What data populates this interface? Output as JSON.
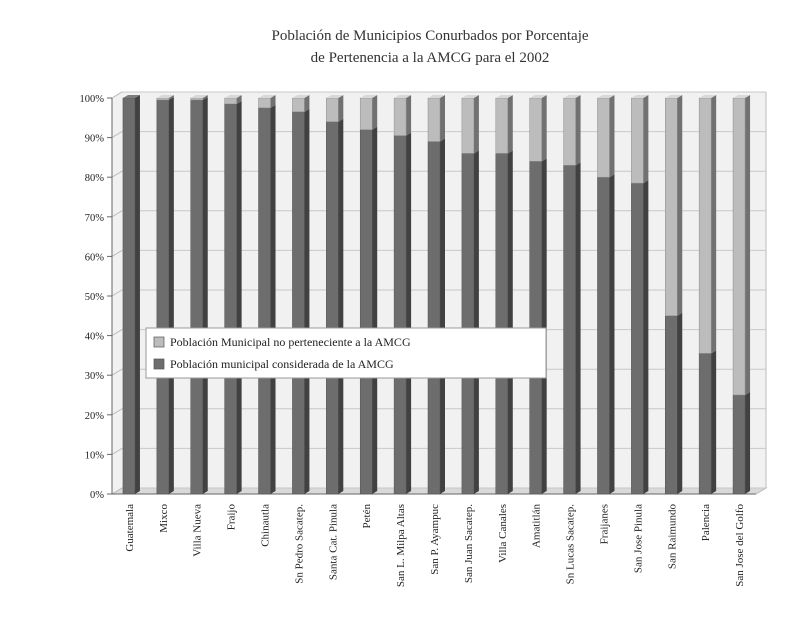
{
  "chart_data": {
    "type": "bar",
    "stacked": true,
    "percent": true,
    "title_lines": [
      "Población de Municipios Conurbados por Porcentaje",
      "de Pertenencia a la AMCG para el 2002"
    ],
    "categories": [
      "Guatemala",
      "Mixco",
      "Villa Nueva",
      "Fraijo",
      "Chinautla",
      "Sn Pedro Sacatep.",
      "Santa Cat. Pinula",
      "Petén",
      "San L. Milpa Altas",
      "San P. Ayampuc",
      "San Juan Sacatep.",
      "Villa Canales",
      "Amatitlán",
      "Sn Lucas Sacatep.",
      "Fraijanes",
      "San Jose Pinula",
      "San Raimundo",
      "Palencia",
      "San Jose del Golfo"
    ],
    "series": [
      {
        "name": "Población municipal considerada de la AMCG",
        "color": "#6d6d6d",
        "values": [
          100,
          99.5,
          99.5,
          98.5,
          97.5,
          96.5,
          94,
          92,
          90.5,
          89,
          86,
          86,
          84,
          83,
          80,
          78.5,
          45,
          35.5,
          25
        ]
      },
      {
        "name": "Población Municipal no perteneciente a la AMCG",
        "color": "#bcbcbc",
        "values": [
          0,
          0.5,
          0.5,
          1.5,
          2.5,
          3.5,
          6,
          8,
          9.5,
          11,
          14,
          14,
          16,
          17,
          20,
          21.5,
          55,
          64.5,
          75
        ]
      }
    ],
    "legend_order": [
      1,
      0
    ],
    "y_ticks": [
      "0%",
      "10%",
      "20%",
      "30%",
      "40%",
      "50%",
      "60%",
      "70%",
      "80%",
      "90%",
      "100%"
    ],
    "ylim": [
      0,
      100
    ],
    "grid": true,
    "legend_position": "center-left"
  }
}
